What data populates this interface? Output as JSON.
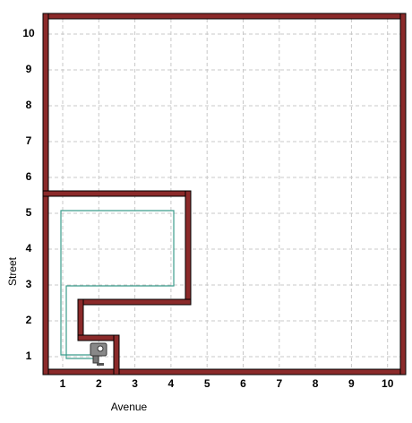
{
  "world": {
    "x_axis": {
      "label": "Avenue",
      "ticks": [
        1,
        2,
        3,
        4,
        5,
        6,
        7,
        8,
        9,
        10
      ]
    },
    "y_axis": {
      "label": "Street",
      "ticks": [
        1,
        2,
        3,
        4,
        5,
        6,
        7,
        8,
        9,
        10
      ]
    }
  }
}
